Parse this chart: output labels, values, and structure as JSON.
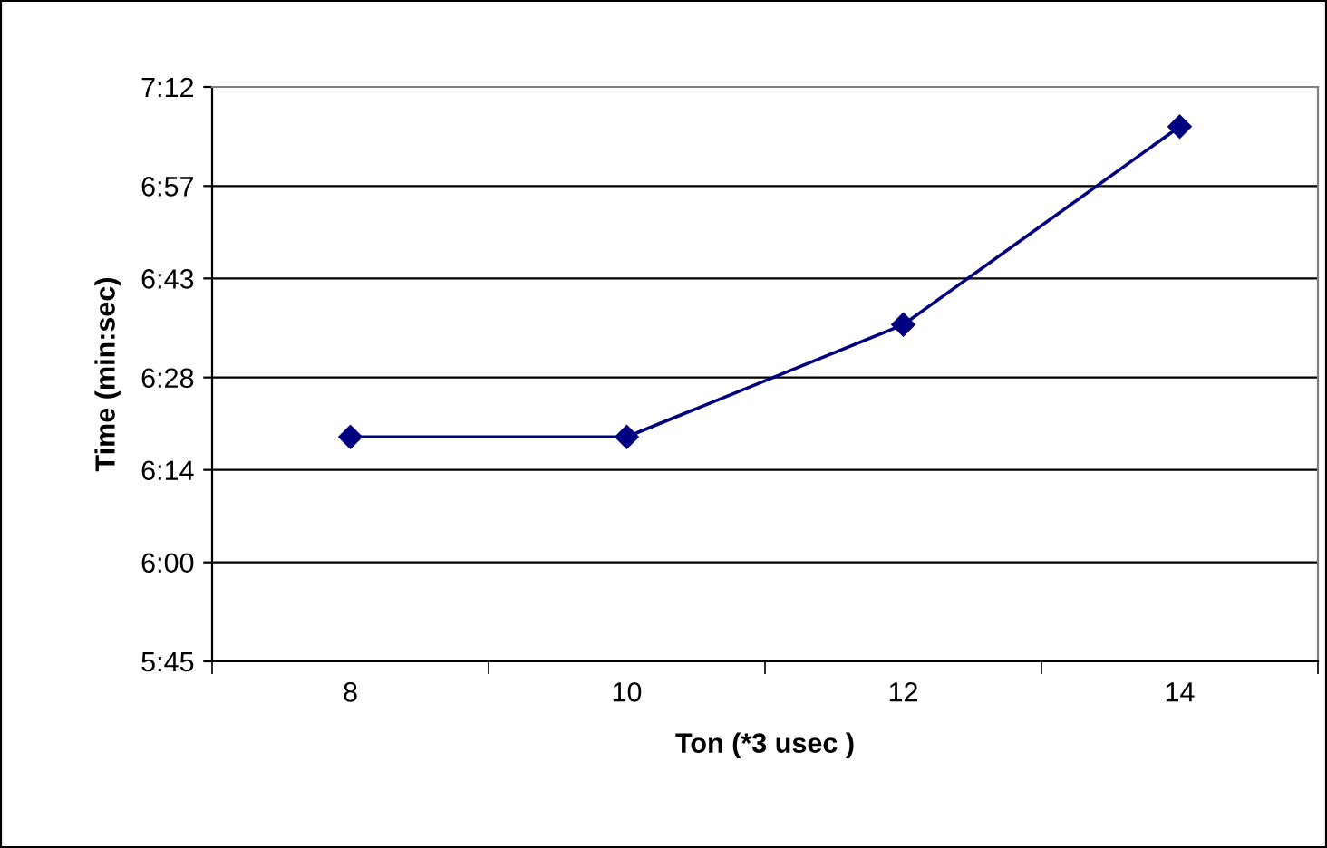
{
  "chart_data": {
    "type": "line",
    "xlabel": "Ton (*3 usec )",
    "ylabel": "Time (min:sec)",
    "categories": [
      "8",
      "10",
      "12",
      "14"
    ],
    "series": [
      {
        "color": "#000080",
        "values": [
          379,
          379,
          396,
          426
        ]
      }
    ],
    "ylim": [
      345,
      432
    ],
    "yticks": [
      {
        "value": 345,
        "label": "5:45"
      },
      {
        "value": 360,
        "label": "6:00"
      },
      {
        "value": 374,
        "label": "6:14"
      },
      {
        "value": 388,
        "label": "6:28"
      },
      {
        "value": 403,
        "label": "6:43"
      },
      {
        "value": 417,
        "label": "6:57"
      },
      {
        "value": 432,
        "label": "7:12"
      }
    ],
    "grid": "y",
    "marker": "diamond",
    "line_style": "solid",
    "legend": false
  }
}
